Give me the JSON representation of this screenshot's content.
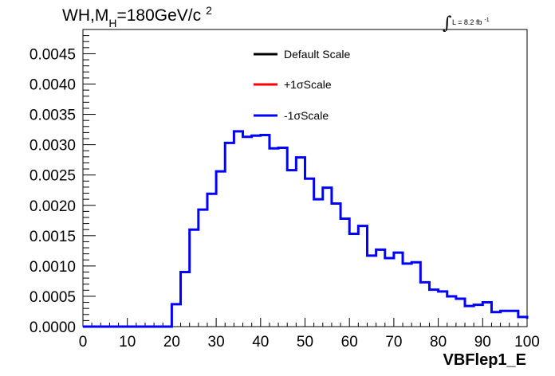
{
  "chart_data": {
    "type": "line",
    "title": {
      "prefix": "WH,M",
      "sub": "H",
      "mid": "=180GeV/c",
      "sup": "2"
    },
    "lumi": {
      "symbol": "∫",
      "text": "L = 8.2 fb",
      "sup": "-1"
    },
    "xlabel": "VBFlep1_E",
    "ylabel": "",
    "xlim": [
      0,
      100
    ],
    "ylim": [
      0,
      0.0049
    ],
    "x_ticks": [
      "0",
      "10",
      "20",
      "30",
      "40",
      "50",
      "60",
      "70",
      "80",
      "90",
      "100"
    ],
    "y_ticks": [
      "0.0000",
      "0.0005",
      "0.0010",
      "0.0015",
      "0.0020",
      "0.0025",
      "0.0030",
      "0.0035",
      "0.0040",
      "0.0045"
    ],
    "legend": {
      "placement": "top-center",
      "entries": [
        {
          "name": "Default Scale",
          "color": "#000000"
        },
        {
          "name": "+1σScale",
          "color": "#ff0000"
        },
        {
          "name": "-1σScale",
          "color": "#0000ff"
        }
      ]
    },
    "bin_edges": [
      0,
      2,
      4,
      6,
      8,
      10,
      12,
      14,
      16,
      18,
      20,
      22,
      24,
      26,
      28,
      30,
      32,
      34,
      36,
      38,
      40,
      42,
      44,
      46,
      48,
      50,
      52,
      54,
      56,
      58,
      60,
      62,
      64,
      66,
      68,
      70,
      72,
      74,
      76,
      78,
      80,
      82,
      84,
      86,
      88,
      90,
      92,
      94,
      96,
      98,
      100
    ],
    "series": [
      {
        "name": "-1σScale",
        "color": "#0000ff",
        "values": [
          0,
          0,
          0,
          0,
          0,
          0,
          0,
          0,
          0,
          0,
          0.00037,
          0.0009,
          0.0016,
          0.00193,
          0.00219,
          0.00256,
          0.00303,
          0.00322,
          0.00313,
          0.00315,
          0.00316,
          0.00294,
          0.00295,
          0.00258,
          0.00279,
          0.00244,
          0.0021,
          0.00229,
          0.00203,
          0.00178,
          0.00153,
          0.00166,
          0.00117,
          0.00127,
          0.00113,
          0.00122,
          0.00104,
          0.00106,
          0.00073,
          0.00061,
          0.00058,
          0.0005,
          0.00046,
          0.00034,
          0.00036,
          0.0004,
          0.00024,
          0.00026,
          0.00026,
          0.00016,
          0.00013
        ]
      }
    ]
  }
}
